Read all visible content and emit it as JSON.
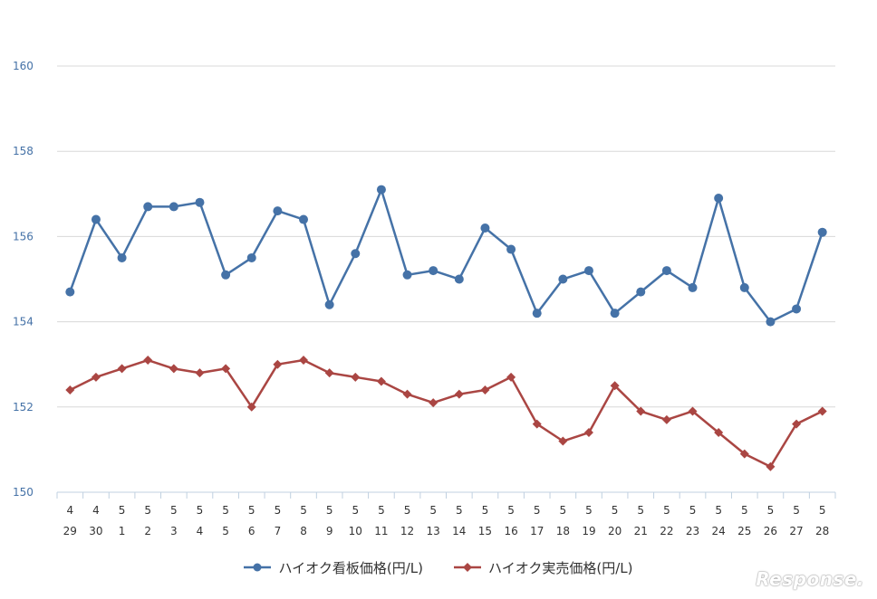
{
  "chart_data": {
    "type": "line",
    "categories": [
      [
        "4",
        "29"
      ],
      [
        "4",
        "30"
      ],
      [
        "5",
        "1"
      ],
      [
        "5",
        "2"
      ],
      [
        "5",
        "3"
      ],
      [
        "5",
        "4"
      ],
      [
        "5",
        "5"
      ],
      [
        "5",
        "6"
      ],
      [
        "5",
        "7"
      ],
      [
        "5",
        "8"
      ],
      [
        "5",
        "9"
      ],
      [
        "5",
        "10"
      ],
      [
        "5",
        "11"
      ],
      [
        "5",
        "12"
      ],
      [
        "5",
        "13"
      ],
      [
        "5",
        "14"
      ],
      [
        "5",
        "15"
      ],
      [
        "5",
        "16"
      ],
      [
        "5",
        "17"
      ],
      [
        "5",
        "18"
      ],
      [
        "5",
        "19"
      ],
      [
        "5",
        "20"
      ],
      [
        "5",
        "21"
      ],
      [
        "5",
        "22"
      ],
      [
        "5",
        "23"
      ],
      [
        "5",
        "24"
      ],
      [
        "5",
        "25"
      ],
      [
        "5",
        "26"
      ],
      [
        "5",
        "27"
      ],
      [
        "5",
        "28"
      ]
    ],
    "series": [
      {
        "name": "ハイオク看板価格(円/L)",
        "color": "#4572a7",
        "marker": "circle",
        "values": [
          154.7,
          156.4,
          155.5,
          156.7,
          156.7,
          156.8,
          155.1,
          155.5,
          156.6,
          156.4,
          154.4,
          155.6,
          157.1,
          155.1,
          155.2,
          155.0,
          156.2,
          155.7,
          154.2,
          155.0,
          155.2,
          154.2,
          154.7,
          155.2,
          154.8,
          156.9,
          154.8,
          154.0,
          154.3,
          156.1
        ]
      },
      {
        "name": "ハイオク実売価格(円/L)",
        "color": "#aa4643",
        "marker": "diamond",
        "values": [
          152.4,
          152.7,
          152.9,
          153.1,
          152.9,
          152.8,
          152.9,
          152.0,
          153.0,
          153.1,
          152.8,
          152.7,
          152.6,
          152.3,
          152.1,
          152.3,
          152.4,
          152.7,
          151.6,
          151.2,
          151.4,
          152.5,
          151.9,
          151.7,
          151.9,
          151.4,
          150.9,
          150.6,
          151.6,
          151.9
        ]
      }
    ],
    "ylim": [
      150,
      160
    ],
    "yticks": [
      "150",
      "152",
      "154",
      "156",
      "158",
      "160"
    ],
    "grid": true,
    "legend_position": "bottom-center",
    "xlabel": "",
    "ylabel": "",
    "title": ""
  },
  "watermark": "Response."
}
